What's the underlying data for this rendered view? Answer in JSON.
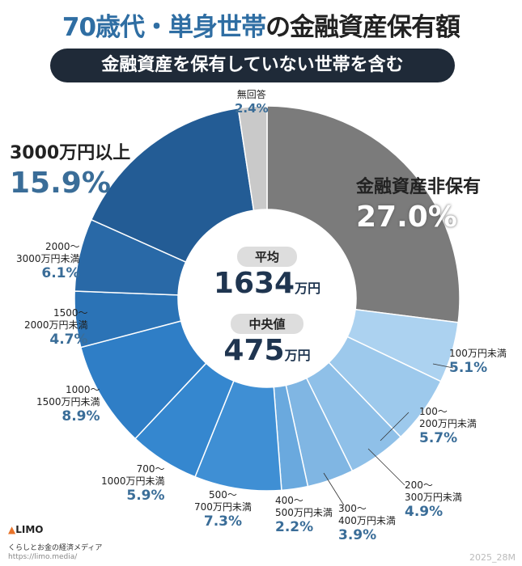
{
  "title": {
    "highlight": "70歳代・単身世帯",
    "rest": "の金融資産保有額"
  },
  "subtitle": "金融資産を保有していない世帯を含む",
  "center": {
    "mean_label": "平均",
    "mean_value": "1634",
    "median_label": "中央値",
    "median_value": "475",
    "unit": "万円"
  },
  "chart_data": {
    "type": "pie",
    "donut": true,
    "categories": [
      "金融資産非保有",
      "100万円未満",
      "100～200万円未満",
      "200～300万円未満",
      "300～400万円未満",
      "400～500万円未満",
      "500～700万円未満",
      "700～1000万円未満",
      "1000～1500万円未満",
      "1500～2000万円未満",
      "2000～3000万円未満",
      "3000万円以上",
      "無回答"
    ],
    "values": [
      27.0,
      5.1,
      5.7,
      4.9,
      3.9,
      2.2,
      7.3,
      5.9,
      8.9,
      4.7,
      6.1,
      15.9,
      2.4
    ],
    "labels": [
      "27.0%",
      "5.1%",
      "5.7%",
      "4.9%",
      "3.9%",
      "2.2%",
      "7.3%",
      "5.9%",
      "8.9%",
      "4.7%",
      "6.1%",
      "15.9%",
      "2.4%"
    ],
    "colors": [
      "#7b7b7b",
      "#acd2f0",
      "#9dc9ec",
      "#8fc0e8",
      "#80b6e3",
      "#6aa9de",
      "#3f8fd4",
      "#3587cf",
      "#2f7ec6",
      "#2b73b6",
      "#2969a7",
      "#235c95",
      "#c9c9c9"
    ]
  },
  "slice_labels": [
    {
      "l1": "金融資産非保有",
      "l2": ""
    },
    {
      "l1": "100万円未満",
      "l2": ""
    },
    {
      "l1": "100～",
      "l2": "200万円未満"
    },
    {
      "l1": "200～",
      "l2": "300万円未満"
    },
    {
      "l1": "300～",
      "l2": "400万円未満"
    },
    {
      "l1": "400～",
      "l2": "500万円未満"
    },
    {
      "l1": "500～",
      "l2": "700万円未満"
    },
    {
      "l1": "700～",
      "l2": "1000万円未満"
    },
    {
      "l1": "1000～",
      "l2": "1500万円未満"
    },
    {
      "l1": "1500～",
      "l2": "2000万円未満"
    },
    {
      "l1": "2000～",
      "l2": "3000万円未満"
    },
    {
      "l1": "3000万円以上",
      "l2": ""
    },
    {
      "l1": "無回答",
      "l2": ""
    }
  ],
  "footer": {
    "logo": "LIMO",
    "tagline": "くらしとお金の経済メディア",
    "url": "https://limo.media/",
    "code": "2025_28M"
  }
}
